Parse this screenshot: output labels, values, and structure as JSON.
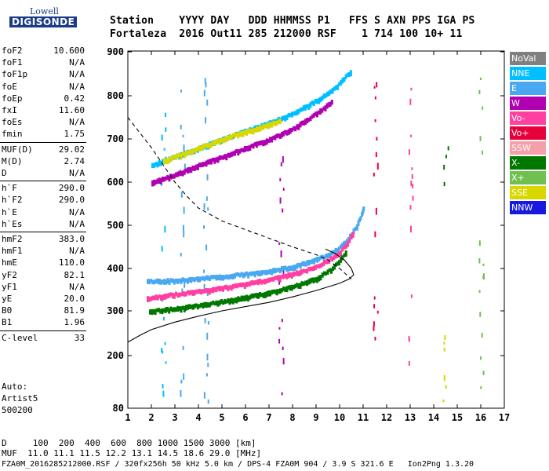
{
  "logo": {
    "line1": "Lowell",
    "line2": "DIGISONDE"
  },
  "header": {
    "row1": "Station    YYYY DAY   DDD HHMMSS P1   FFS S AXN PPS IGA PS",
    "row2": "Fortaleza  2016 Out11 285 212000 RSF    1 714 100 10+ 11"
  },
  "params": [
    {
      "name": "foF2",
      "value": "10.600"
    },
    {
      "name": "foF1",
      "value": "N/A"
    },
    {
      "name": "foF1p",
      "value": "N/A"
    },
    {
      "name": "foE",
      "value": "N/A"
    },
    {
      "name": "foEp",
      "value": "0.42"
    },
    {
      "name": "fxI",
      "value": "11.60"
    },
    {
      "name": "foEs",
      "value": "N/A"
    },
    {
      "name": "fmin",
      "value": "1.75"
    },
    {
      "name": "MUF(D)",
      "value": "29.02"
    },
    {
      "name": "M(D)",
      "value": "2.74"
    },
    {
      "name": "D",
      "value": "N/A"
    },
    {
      "name": "h`F",
      "value": "290.0"
    },
    {
      "name": "h`F2",
      "value": "290.0"
    },
    {
      "name": "h`E",
      "value": "N/A"
    },
    {
      "name": "h`Es",
      "value": "N/A"
    },
    {
      "name": "hmF2",
      "value": "383.0"
    },
    {
      "name": "hmF1",
      "value": "N/A"
    },
    {
      "name": "hmE",
      "value": "110.0"
    },
    {
      "name": "yF2",
      "value": "82.1"
    },
    {
      "name": "yF1",
      "value": "N/A"
    },
    {
      "name": "yE",
      "value": "20.0"
    },
    {
      "name": "B0",
      "value": "81.9"
    },
    {
      "name": "B1",
      "value": "1.96"
    },
    {
      "name": "C-level",
      "value": "33"
    }
  ],
  "side_text": {
    "auto": "Auto:",
    "artist": "Artist5",
    "version": "500200"
  },
  "legend": [
    {
      "label": "NoVal",
      "color": "#808080"
    },
    {
      "label": "NNE",
      "color": "#00bfff"
    },
    {
      "label": "E",
      "color": "#4aa8f0"
    },
    {
      "label": "W",
      "color": "#b000b0"
    },
    {
      "label": "Vo-",
      "color": "#ff40a0"
    },
    {
      "label": "Vo+",
      "color": "#e8003c"
    },
    {
      "label": "SSW",
      "color": "#f5a0a8"
    },
    {
      "label": "X-",
      "color": "#007800"
    },
    {
      "label": "X+",
      "color": "#70c050"
    },
    {
      "label": "SSE",
      "color": "#d8d800"
    },
    {
      "label": "NNW",
      "color": "#1818e0"
    }
  ],
  "footer": {
    "line1": "D     100  200  400  600  800 1000 1500 3000 [km]",
    "line2": "MUF  11.0 11.1 11.5 12.2 13.1 14.5 18.6 29.0 [MHz]",
    "line3": "FZA0M_2016285212000.RSF / 320fx256h 50 kHz 5.0 km / DPS-4 FZA0M 904 / 3.9 S 321.6 E   Ion2Png 1.3.20"
  },
  "chart_data": {
    "type": "scatter",
    "xlim": [
      1,
      17
    ],
    "ylim": [
      80,
      900
    ],
    "x_ticks": [
      1,
      2,
      3,
      4,
      5,
      6,
      7,
      8,
      9,
      10,
      11,
      12,
      13,
      14,
      15,
      16,
      17
    ],
    "y_ticks": [
      80,
      200,
      300,
      400,
      500,
      600,
      700,
      800,
      900
    ],
    "traces": [
      {
        "name": "E-upper-F",
        "color": "#4aa8f0",
        "points": [
          [
            1.8,
            370
          ],
          [
            3,
            373
          ],
          [
            4,
            377
          ],
          [
            5,
            382
          ],
          [
            6,
            388
          ],
          [
            7,
            395
          ],
          [
            8,
            405
          ],
          [
            8.8,
            418
          ],
          [
            9.5,
            432
          ],
          [
            10,
            450
          ],
          [
            10.4,
            475
          ],
          [
            10.7,
            500
          ],
          [
            10.9,
            525
          ],
          [
            11,
            545
          ]
        ]
      },
      {
        "name": "Vo-lower-F",
        "color": "#ff40a0",
        "points": [
          [
            1.8,
            330
          ],
          [
            3,
            340
          ],
          [
            4,
            347
          ],
          [
            5,
            355
          ],
          [
            6,
            365
          ],
          [
            7,
            375
          ],
          [
            8,
            388
          ],
          [
            9,
            405
          ],
          [
            9.5,
            420
          ],
          [
            10,
            440
          ],
          [
            10.3,
            460
          ],
          [
            10.6,
            490
          ]
        ]
      },
      {
        "name": "X-lower-F",
        "color": "#007800",
        "points": [
          [
            1.9,
            300
          ],
          [
            3,
            306
          ],
          [
            4,
            314
          ],
          [
            5,
            323
          ],
          [
            6,
            333
          ],
          [
            7,
            344
          ],
          [
            8,
            358
          ],
          [
            9,
            378
          ],
          [
            9.6,
            398
          ],
          [
            10,
            420
          ],
          [
            10.3,
            445
          ]
        ]
      },
      {
        "name": "NNE-high",
        "color": "#00bfff",
        "points": [
          [
            2,
            640
          ],
          [
            3,
            660
          ],
          [
            4,
            680
          ],
          [
            5,
            700
          ],
          [
            6,
            720
          ],
          [
            7,
            738
          ],
          [
            8,
            760
          ],
          [
            9,
            790
          ],
          [
            9.8,
            820
          ],
          [
            10.5,
            860
          ]
        ]
      },
      {
        "name": "SSE-high",
        "color": "#d8d800",
        "points": [
          [
            2.5,
            650
          ],
          [
            3.5,
            670
          ],
          [
            4.5,
            690
          ],
          [
            5.5,
            710
          ],
          [
            6.5,
            725
          ],
          [
            7.5,
            745
          ]
        ]
      },
      {
        "name": "W-high",
        "color": "#b000b0",
        "points": [
          [
            2,
            600
          ],
          [
            3,
            618
          ],
          [
            4,
            640
          ],
          [
            5,
            660
          ],
          [
            6,
            680
          ],
          [
            7,
            700
          ],
          [
            8,
            725
          ],
          [
            9,
            760
          ],
          [
            9.7,
            790
          ]
        ]
      }
    ],
    "curves": [
      {
        "name": "profile-dashed",
        "style": "dashed",
        "points": [
          [
            1,
            750
          ],
          [
            1.5,
            715
          ],
          [
            2,
            680
          ],
          [
            2.5,
            640
          ],
          [
            3,
            600
          ],
          [
            3.5,
            568
          ],
          [
            4,
            540
          ],
          [
            5,
            510
          ],
          [
            6,
            490
          ],
          [
            7,
            470
          ],
          [
            8,
            450
          ],
          [
            9,
            432
          ],
          [
            9.5,
            420
          ],
          [
            10,
            400
          ],
          [
            10.3,
            385
          ],
          [
            10.5,
            375
          ]
        ]
      },
      {
        "name": "profile-solid",
        "style": "solid",
        "points": [
          [
            1,
            230
          ],
          [
            1.5,
            245
          ],
          [
            2,
            258
          ],
          [
            3,
            275
          ],
          [
            4,
            288
          ],
          [
            5,
            300
          ],
          [
            6,
            310
          ],
          [
            7,
            320
          ],
          [
            8,
            333
          ],
          [
            9,
            348
          ],
          [
            10,
            365
          ],
          [
            10.4,
            375
          ],
          [
            10.6,
            385
          ],
          [
            10.5,
            400
          ],
          [
            10.2,
            420
          ],
          [
            9.8,
            435
          ],
          [
            9.4,
            445
          ]
        ]
      }
    ],
    "scatter_columns": [
      {
        "x": 11.5,
        "ymin": 170,
        "ymax": 870,
        "color": "#e8003c"
      },
      {
        "x": 13.0,
        "ymin": 150,
        "ymax": 860,
        "color": "#ff40a0"
      },
      {
        "x": 14.5,
        "ymin": 560,
        "ymax": 700,
        "color": "#007800"
      },
      {
        "x": 14.4,
        "ymin": 100,
        "ymax": 260,
        "color": "#d8d800"
      },
      {
        "x": 16.0,
        "ymin": 130,
        "ymax": 880,
        "color": "#70c050"
      },
      {
        "x": 3.3,
        "ymin": 100,
        "ymax": 870,
        "color": "#4aa8f0"
      },
      {
        "x": 4.3,
        "ymin": 100,
        "ymax": 870,
        "color": "#4aa8f0"
      },
      {
        "x": 2.5,
        "ymin": 120,
        "ymax": 780,
        "color": "#00bfff"
      },
      {
        "x": 7.5,
        "ymin": 90,
        "ymax": 660,
        "color": "#b000b0"
      }
    ]
  }
}
